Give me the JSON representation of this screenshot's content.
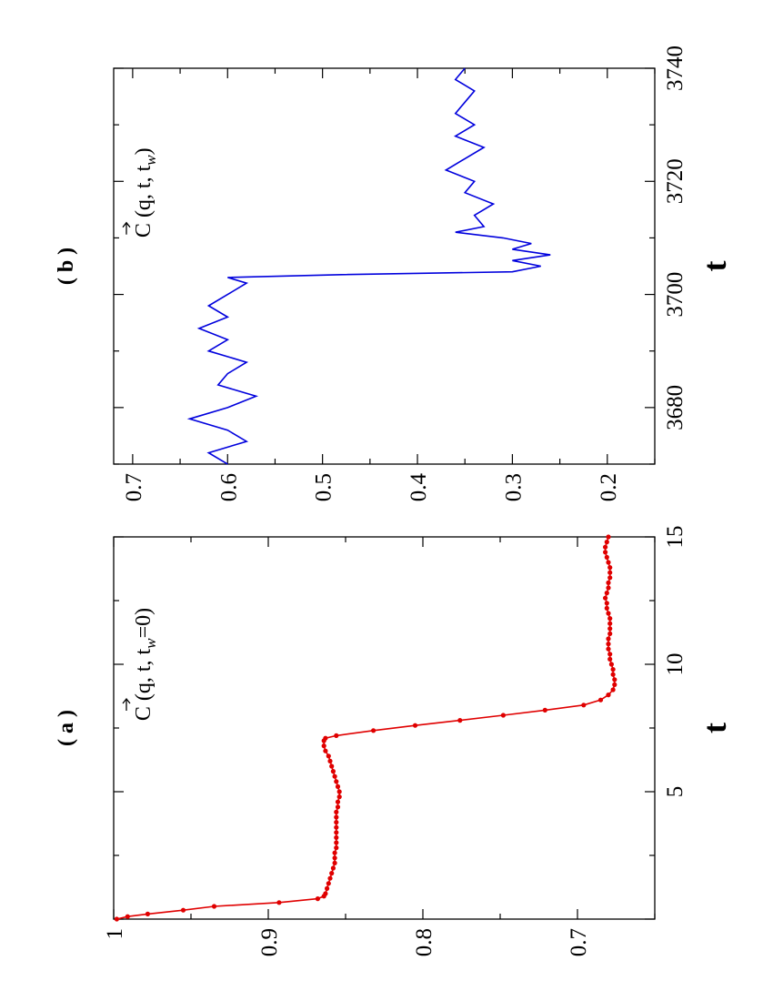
{
  "chart_data": [
    {
      "panel_label": "( a )",
      "type": "line",
      "xlabel": "t",
      "ylabel": "",
      "annotation": {
        "base": "C (q, t, t",
        "sub": "w",
        "tail": "=0)"
      },
      "xlim": [
        0,
        15
      ],
      "ylim": [
        0.65,
        1.0
      ],
      "x_ticks": [
        5,
        10,
        15
      ],
      "y_ticks": [
        0.7,
        0.8,
        0.9,
        1
      ],
      "x_tick_labels": [
        "5",
        "10",
        "15"
      ],
      "y_tick_labels": [
        "0.7",
        "0.8",
        "0.9",
        "1"
      ],
      "color": "#e00000",
      "markers": true,
      "series": [
        {
          "x": [
            0.0,
            0.1,
            0.2,
            0.35,
            0.5,
            0.65,
            0.8,
            0.9,
            1.0,
            1.2,
            1.4,
            1.6,
            1.8,
            2.0,
            2.2,
            2.4,
            2.6,
            2.8,
            3.0,
            3.2,
            3.4,
            3.6,
            3.8,
            4.0,
            4.2,
            4.4,
            4.6,
            4.8,
            5.0,
            5.2,
            5.4,
            5.6,
            5.8,
            6.0,
            6.2,
            6.4,
            6.6,
            6.8,
            7.0,
            7.1,
            7.2,
            7.4,
            7.6,
            7.8,
            8.0,
            8.2,
            8.4,
            8.6,
            8.8,
            9.0,
            9.2,
            9.4,
            9.6,
            9.8,
            10.0,
            10.2,
            10.4,
            10.6,
            10.8,
            11.0,
            11.2,
            11.4,
            11.6,
            11.8,
            12.0,
            12.2,
            12.4,
            12.6,
            12.8,
            13.0,
            13.2,
            13.4,
            13.6,
            13.8,
            14.0,
            14.2,
            14.4,
            14.6,
            14.8,
            15.0
          ],
          "y": [
            0.998,
            0.991,
            0.978,
            0.955,
            0.935,
            0.893,
            0.868,
            0.864,
            0.863,
            0.862,
            0.861,
            0.86,
            0.859,
            0.858,
            0.857,
            0.857,
            0.857,
            0.856,
            0.856,
            0.856,
            0.856,
            0.856,
            0.856,
            0.856,
            0.856,
            0.855,
            0.855,
            0.854,
            0.854,
            0.855,
            0.856,
            0.857,
            0.858,
            0.859,
            0.86,
            0.861,
            0.863,
            0.864,
            0.864,
            0.863,
            0.856,
            0.832,
            0.805,
            0.776,
            0.748,
            0.721,
            0.696,
            0.685,
            0.68,
            0.677,
            0.676,
            0.676,
            0.677,
            0.677,
            0.678,
            0.679,
            0.679,
            0.68,
            0.68,
            0.68,
            0.679,
            0.679,
            0.679,
            0.679,
            0.68,
            0.681,
            0.681,
            0.682,
            0.681,
            0.68,
            0.68,
            0.679,
            0.679,
            0.679,
            0.68,
            0.681,
            0.682,
            0.682,
            0.681,
            0.68
          ]
        }
      ]
    },
    {
      "panel_label": "( b )",
      "type": "line",
      "xlabel": "t",
      "ylabel": "",
      "annotation": {
        "base": "C (q, t, t",
        "sub": "w",
        "tail": ")"
      },
      "xlim": [
        3670,
        3740
      ],
      "ylim": [
        0.15,
        0.72
      ],
      "x_ticks": [
        3680,
        3700,
        3720,
        3740
      ],
      "y_ticks": [
        0.2,
        0.3,
        0.4,
        0.5,
        0.6,
        0.7
      ],
      "x_tick_labels": [
        "3680",
        "3700",
        "3720",
        "3740"
      ],
      "y_tick_labels": [
        "0.2",
        "0.3",
        "0.4",
        "0.5",
        "0.6",
        "0.7"
      ],
      "color": "#0000dd",
      "markers": false,
      "series": [
        {
          "x": [
            3670,
            3672,
            3674,
            3676,
            3678,
            3680,
            3682,
            3684,
            3686,
            3688,
            3690,
            3692,
            3694,
            3696,
            3698,
            3700,
            3702,
            3703,
            3703.5,
            3704,
            3705,
            3706,
            3707,
            3708,
            3709,
            3710,
            3711,
            3712,
            3714,
            3716,
            3718,
            3720,
            3722,
            3724,
            3726,
            3728,
            3730,
            3732,
            3734,
            3736,
            3738,
            3740
          ],
          "y": [
            0.6,
            0.62,
            0.58,
            0.6,
            0.64,
            0.6,
            0.57,
            0.61,
            0.6,
            0.58,
            0.62,
            0.6,
            0.63,
            0.6,
            0.62,
            0.6,
            0.58,
            0.6,
            0.48,
            0.3,
            0.27,
            0.3,
            0.26,
            0.3,
            0.28,
            0.31,
            0.36,
            0.33,
            0.34,
            0.32,
            0.35,
            0.34,
            0.37,
            0.35,
            0.33,
            0.36,
            0.34,
            0.36,
            0.35,
            0.34,
            0.36,
            0.35
          ]
        }
      ]
    }
  ]
}
